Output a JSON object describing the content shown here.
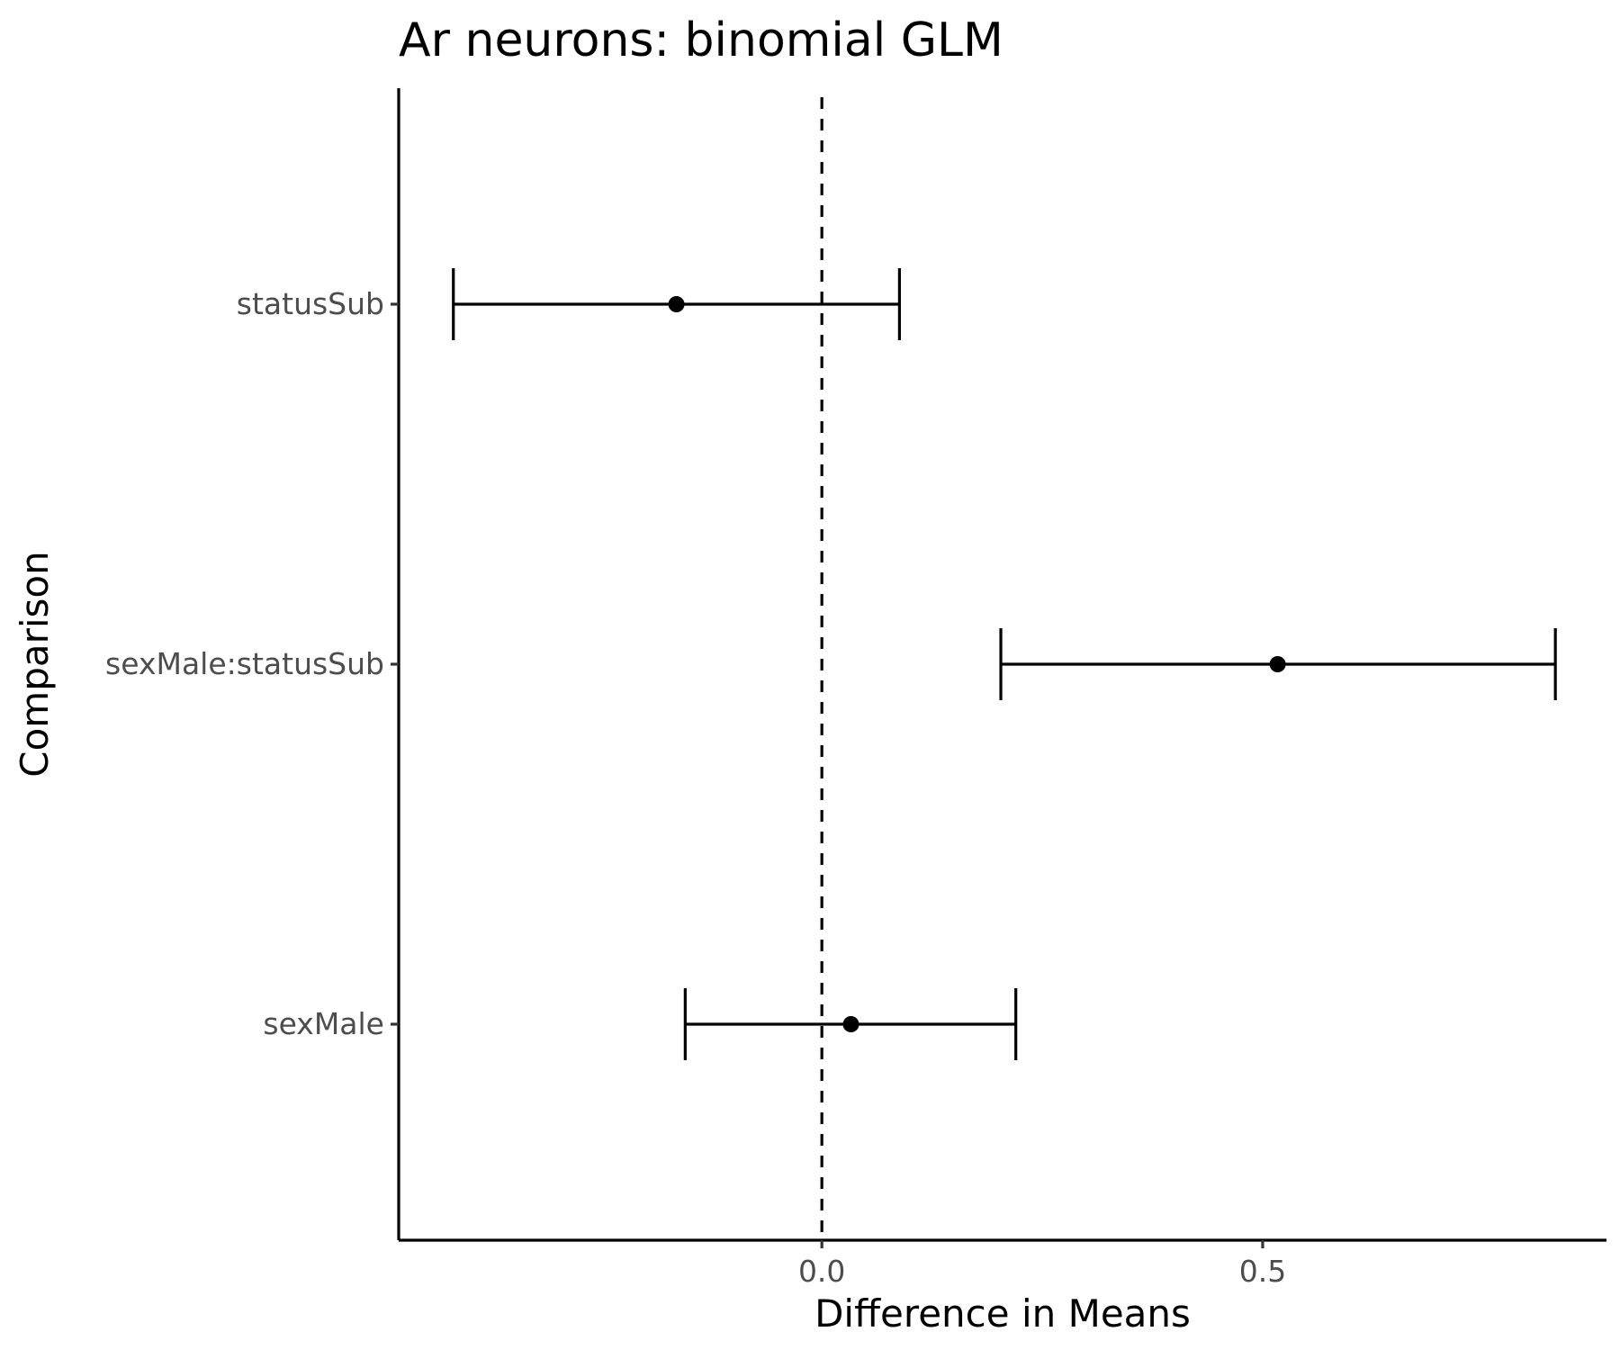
{
  "chart_data": {
    "type": "errorbar",
    "title": "Ar neurons: binomial GLM",
    "xlabel": "Difference in Means",
    "ylabel": "Comparison",
    "xlim": [
      -0.48,
      0.89
    ],
    "xticks": [
      0.0,
      0.5
    ],
    "xtick_labels": [
      "0.0",
      "0.5"
    ],
    "reference_line": {
      "x": 0,
      "style": "dashed"
    },
    "grid": false,
    "categories": [
      "statusSub",
      "sexMale:statusSub",
      "sexMale"
    ],
    "estimates": [
      -0.165,
      0.517,
      0.033
    ],
    "lower": [
      -0.418,
      0.203,
      -0.155
    ],
    "upper": [
      0.088,
      0.832,
      0.22
    ]
  }
}
